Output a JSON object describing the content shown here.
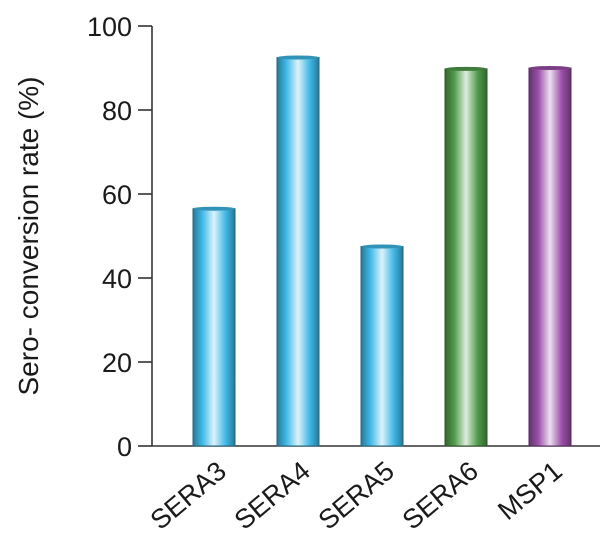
{
  "chart_data": {
    "type": "bar",
    "categories": [
      "SERA3",
      "SERA4",
      "SERA5",
      "SERA6",
      "MSP1"
    ],
    "values": [
      56.5,
      92.5,
      47.5,
      89.8,
      90.0
    ],
    "xlabel": "",
    "ylabel": "Sero- conversion rate (%)",
    "ylim": [
      0,
      100
    ],
    "yticks": [
      0,
      20,
      40,
      60,
      80,
      100
    ],
    "ytick_labels": [
      "0",
      "20",
      "40",
      "60",
      "80",
      "100"
    ],
    "grid": false,
    "legend": "none",
    "bar_colors": {
      "SERA3": "#3fb8e6",
      "SERA4": "#3fb8e6",
      "SERA5": "#3fb8e6",
      "SERA6": "#4f9a4a",
      "MSP1": "#9a4fa8"
    }
  }
}
